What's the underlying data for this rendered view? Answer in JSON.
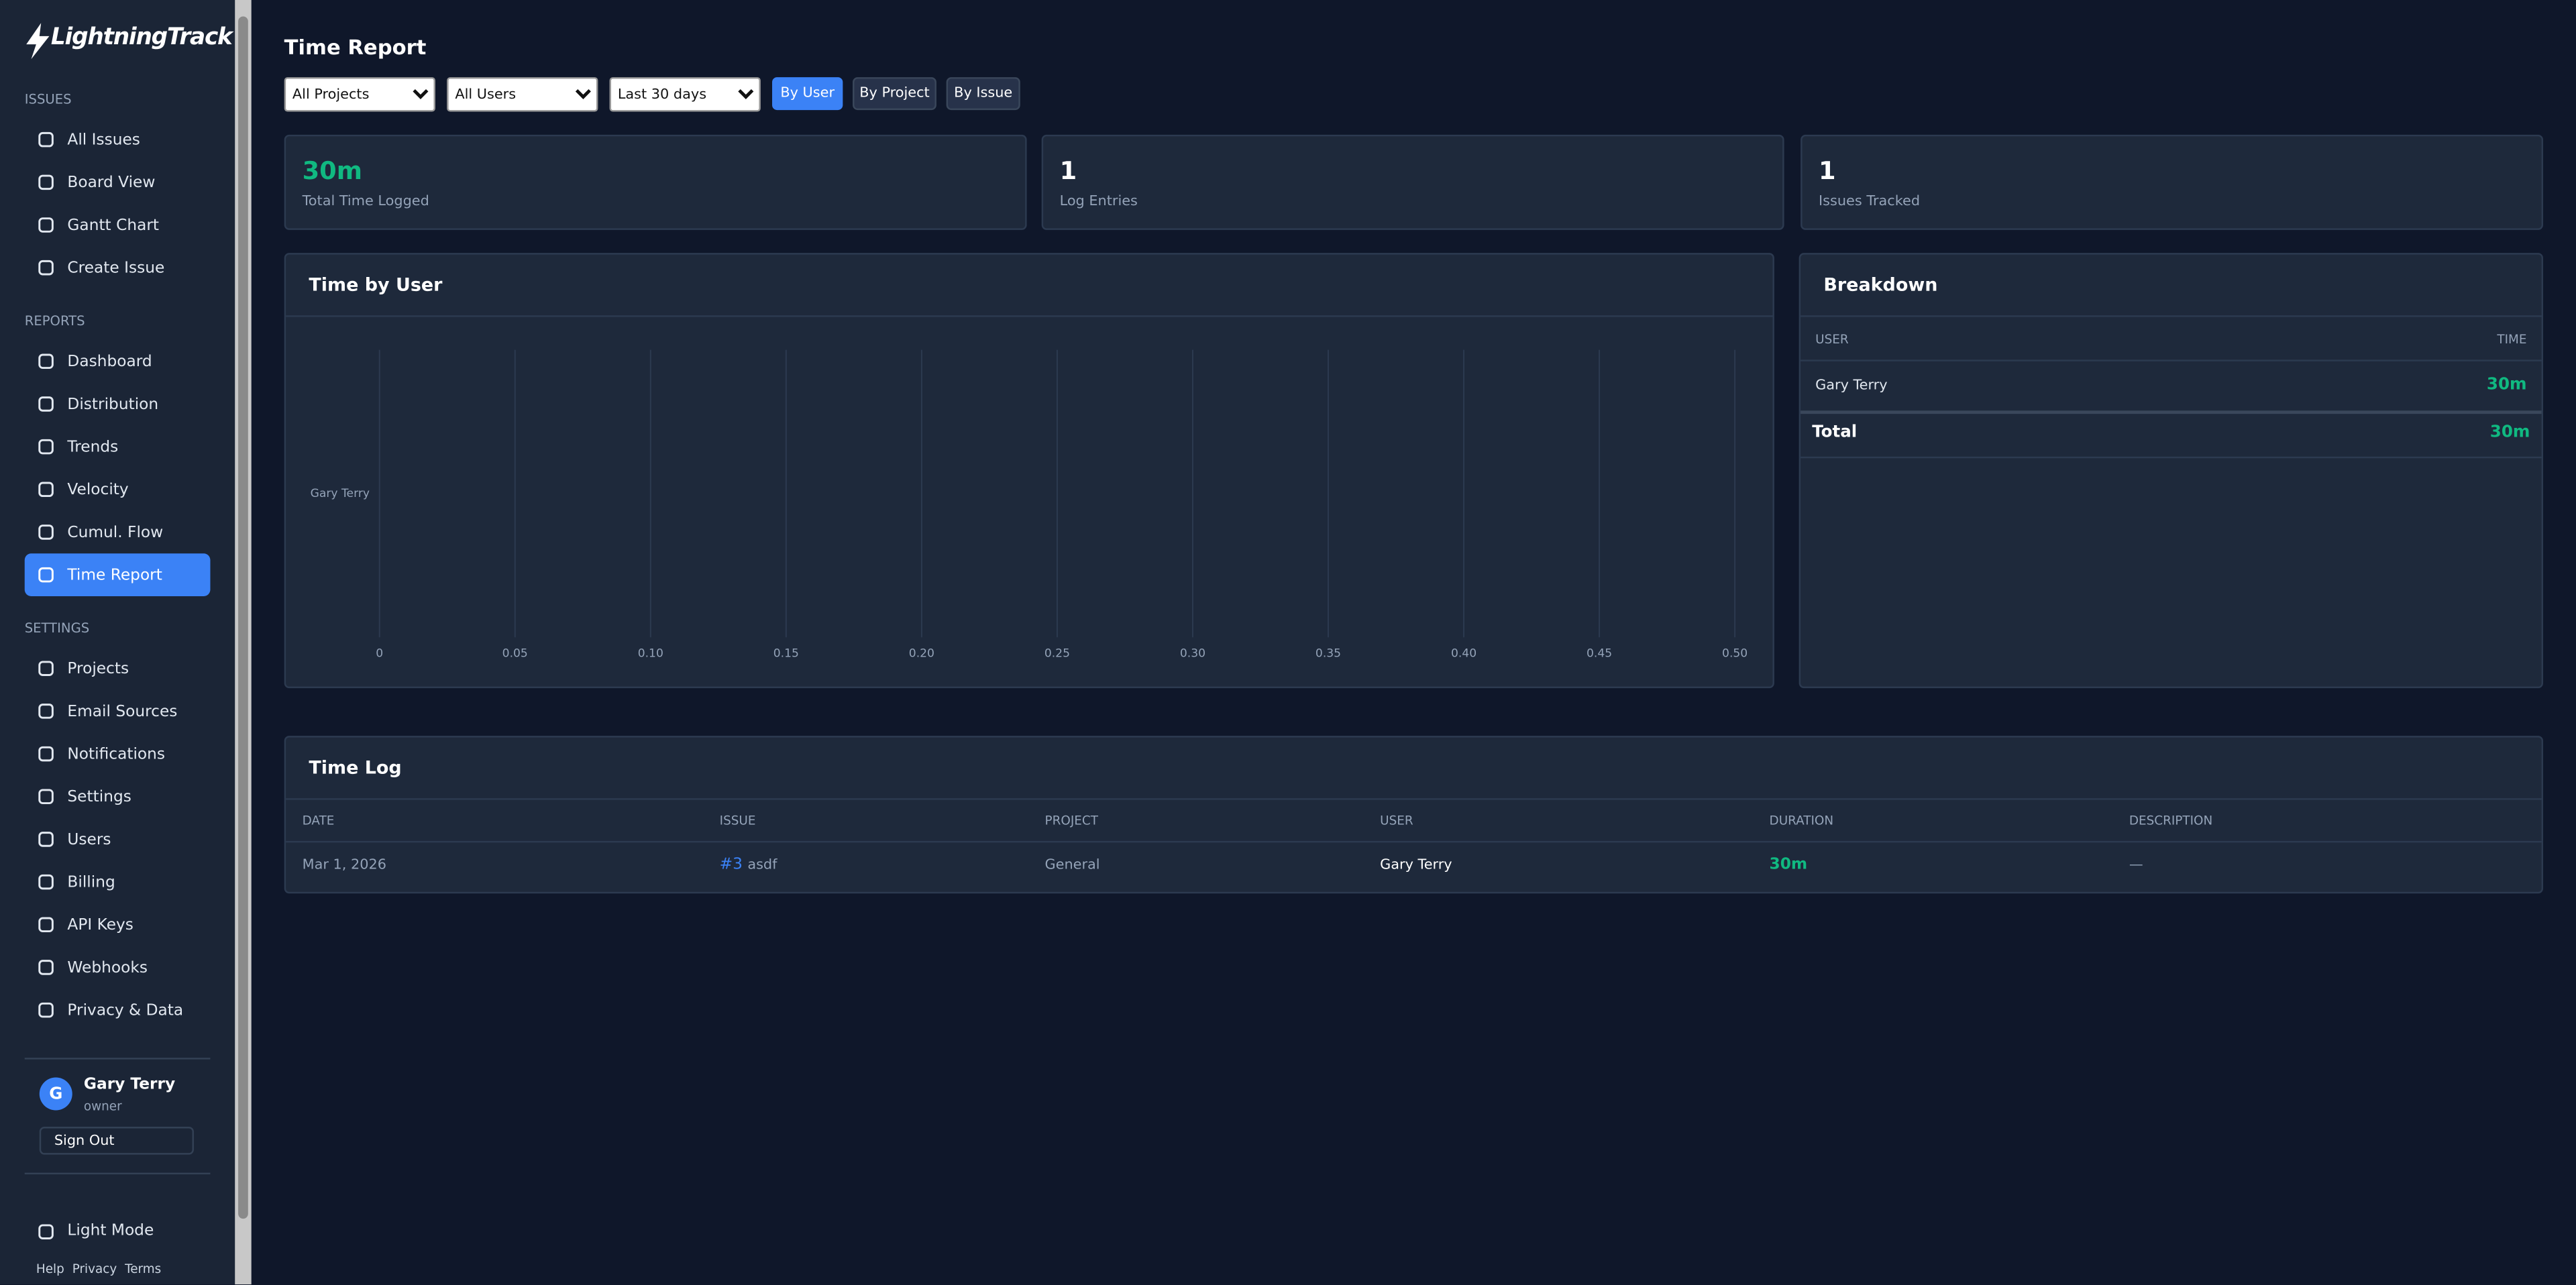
{
  "sidebar": {
    "brand": "LightningTrack",
    "sections": [
      {
        "title": "ISSUES",
        "items": [
          {
            "label": "All Issues"
          },
          {
            "label": "Board View"
          },
          {
            "label": "Gantt Chart"
          },
          {
            "label": "Create Issue"
          }
        ]
      },
      {
        "title": "REPORTS",
        "items": [
          {
            "label": "Dashboard"
          },
          {
            "label": "Distribution"
          },
          {
            "label": "Trends"
          },
          {
            "label": "Velocity"
          },
          {
            "label": "Cumul. Flow"
          },
          {
            "label": "Time Report",
            "active": true
          }
        ]
      },
      {
        "title": "SETTINGS",
        "items": [
          {
            "label": "Projects"
          },
          {
            "label": "Email Sources"
          },
          {
            "label": "Notifications"
          },
          {
            "label": "Settings"
          },
          {
            "label": "Users"
          },
          {
            "label": "Billing"
          },
          {
            "label": "API Keys"
          },
          {
            "label": "Webhooks"
          },
          {
            "label": "Privacy & Data"
          }
        ]
      }
    ],
    "user": {
      "initial": "G",
      "name": "Gary Terry",
      "role": "owner",
      "sign_out": "Sign Out"
    },
    "theme_toggle": "Light Mode",
    "footer_links": [
      "Help",
      "Privacy",
      "Terms"
    ]
  },
  "page": {
    "title": "Time Report",
    "filters": [
      "All Projects",
      "All Users",
      "Last 30 days"
    ],
    "group_by": [
      {
        "label": "By User",
        "active": true
      },
      {
        "label": "By Project"
      },
      {
        "label": "By Issue"
      }
    ],
    "stats": [
      {
        "value": "30m",
        "label": "Total Time Logged"
      },
      {
        "value": 1,
        "label": "Log Entries"
      },
      {
        "value": 1,
        "label": "Issues Tracked"
      }
    ]
  },
  "chart_data": {
    "type": "bar",
    "orientation": "horizontal",
    "title": "Time by User",
    "categories": [
      "Gary Terry"
    ],
    "xlim": [
      0,
      0.5
    ],
    "xticks": [
      0,
      0.05,
      {
        "value": 0.1,
        "label": "0.10"
      },
      0.15,
      {
        "value": 0.2,
        "label": "0.20"
      },
      0.25,
      {
        "value": 0.3,
        "label": "0.30"
      },
      0.35,
      {
        "value": 0.4,
        "label": "0.40"
      },
      0.45,
      {
        "value": 0.5,
        "label": "0.50"
      }
    ],
    "grid": true
  },
  "breakdown": {
    "title": "Breakdown",
    "columns": [
      "USER",
      "TIME"
    ],
    "rows": [
      [
        "Gary Terry",
        "30m"
      ]
    ],
    "total": [
      "Total",
      "30m"
    ]
  },
  "time_log": {
    "title": "Time Log",
    "columns": [
      "DATE",
      "ISSUE",
      "PROJECT",
      "USER",
      "DURATION",
      "DESCRIPTION"
    ],
    "rows": [
      {
        "date": "Mar 1, 2026",
        "issue_key": "#3",
        "issue_title": "asdf",
        "project": "General",
        "user": "Gary Terry",
        "duration": "30m",
        "description": "—"
      }
    ]
  }
}
